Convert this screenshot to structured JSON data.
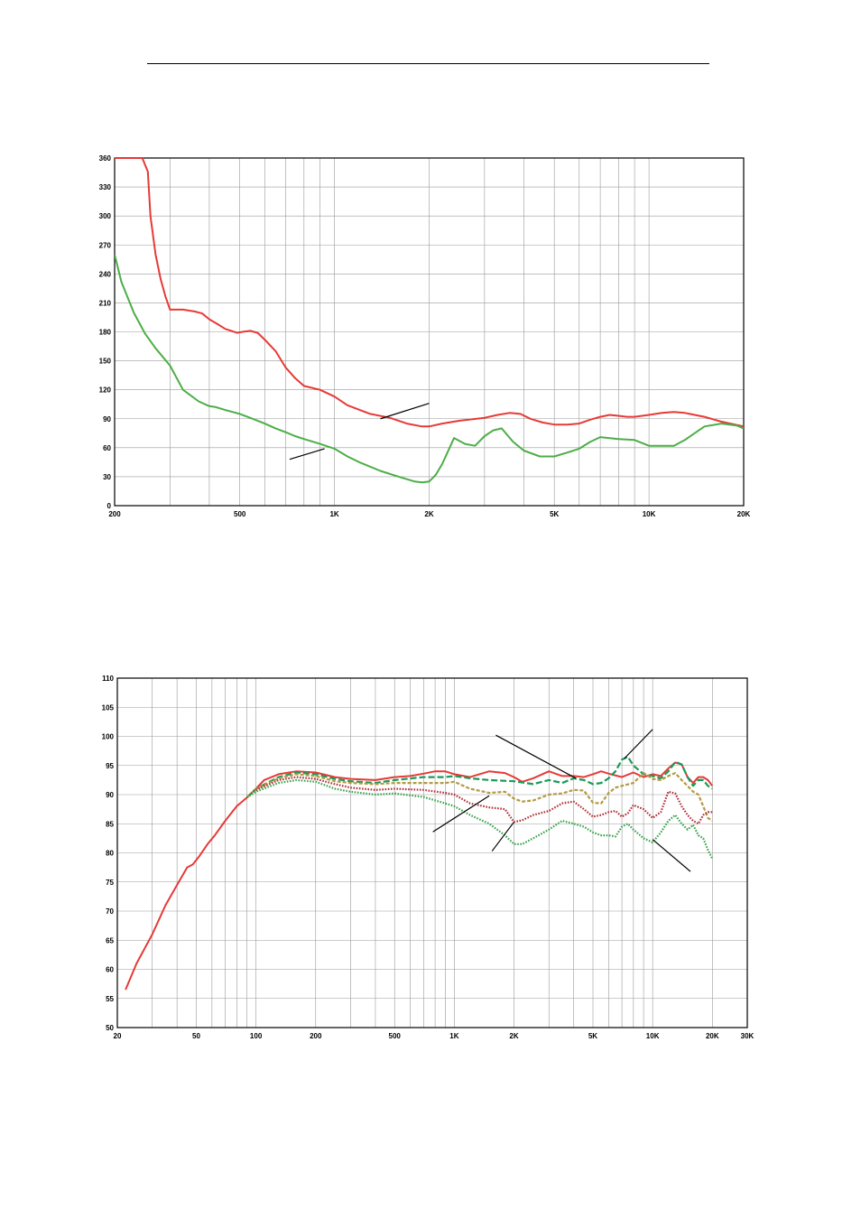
{
  "colors": {
    "red": "#e63a36",
    "green": "#4cae47",
    "dark_green": "#1a9a58",
    "olive": "#b39a45",
    "dark_red": "#b12f3a",
    "light_green": "#3aa54d",
    "grid": "#9a9a9a",
    "frame": "#000000"
  },
  "chart_data": [
    {
      "type": "line",
      "x_scale": "log",
      "xlim": [
        200,
        20000
      ],
      "ylim": [
        0,
        360
      ],
      "x_tick_values": [
        200,
        500,
        1000,
        2000,
        5000,
        10000,
        20000
      ],
      "x_tick_labels": [
        "200",
        "500",
        "1K",
        "2K",
        "5K",
        "10K",
        "20K"
      ],
      "y_tick_values": [
        0,
        30,
        60,
        90,
        120,
        150,
        180,
        210,
        240,
        270,
        300,
        330,
        360
      ],
      "y_tick_labels": [
        "0",
        "30",
        "60",
        "90",
        "120",
        "150",
        "180",
        "210",
        "240",
        "270",
        "300",
        "330",
        "360"
      ],
      "grid": true,
      "series": [
        {
          "color_key": "red",
          "style": "solid",
          "x": [
            200,
            245,
            255,
            260,
            270,
            280,
            290,
            300,
            330,
            360,
            380,
            400,
            420,
            450,
            490,
            510,
            540,
            570,
            600,
            650,
            700,
            750,
            800,
            900,
            1000,
            1100,
            1300,
            1500,
            1700,
            1900,
            2000,
            2200,
            2500,
            3000,
            3300,
            3600,
            3900,
            4200,
            4600,
            5000,
            5500,
            6000,
            6500,
            7000,
            7500,
            8000,
            8500,
            9000,
            10000,
            11000,
            12000,
            13000,
            15000,
            17000,
            20000
          ],
          "y": [
            360,
            360,
            346,
            300,
            260,
            235,
            217,
            203,
            203,
            201,
            199,
            193,
            189,
            183,
            179,
            180,
            181,
            179,
            172,
            160,
            143,
            132,
            124,
            120,
            113,
            104,
            95,
            91,
            85,
            82,
            82,
            85,
            88,
            91,
            94,
            96,
            95,
            90,
            86,
            84,
            84,
            85,
            89,
            92,
            94,
            93,
            92,
            92,
            94,
            96,
            97,
            96,
            92,
            87,
            82
          ]
        },
        {
          "color_key": "green",
          "style": "solid",
          "x": [
            200,
            210,
            230,
            250,
            270,
            300,
            330,
            370,
            400,
            420,
            450,
            500,
            550,
            600,
            650,
            700,
            750,
            800,
            900,
            1000,
            1100,
            1200,
            1400,
            1600,
            1800,
            1900,
            2000,
            2100,
            2200,
            2400,
            2600,
            2800,
            3000,
            3200,
            3400,
            3700,
            4000,
            4500,
            5000,
            5500,
            6000,
            6500,
            7000,
            8000,
            9000,
            10000,
            11000,
            12000,
            13000,
            15000,
            17000,
            19000,
            20000
          ],
          "y": [
            260,
            232,
            200,
            178,
            163,
            145,
            120,
            108,
            103,
            102,
            99,
            95,
            90,
            85,
            80,
            76,
            72,
            69,
            64,
            59,
            51,
            45,
            36,
            30,
            25,
            24,
            25,
            32,
            43,
            70,
            64,
            62,
            72,
            78,
            80,
            66,
            57,
            51,
            51,
            55,
            59,
            66,
            71,
            69,
            68,
            62,
            62,
            62,
            68,
            82,
            85,
            83,
            80
          ]
        }
      ],
      "annotation_lines": [
        {
          "x1": 1400,
          "y1": 90,
          "x2": 2000,
          "y2": 106
        },
        {
          "x1": 720,
          "y1": 48,
          "x2": 930,
          "y2": 59
        }
      ]
    },
    {
      "type": "line",
      "x_scale": "log",
      "xlim": [
        20,
        30000
      ],
      "ylim": [
        50,
        110
      ],
      "x_tick_values": [
        20,
        50,
        100,
        200,
        500,
        1000,
        2000,
        5000,
        10000,
        20000,
        30000
      ],
      "x_tick_labels": [
        "20",
        "50",
        "100",
        "200",
        "500",
        "1K",
        "2K",
        "5K",
        "10K",
        "20K",
        "30K"
      ],
      "y_tick_values": [
        50,
        55,
        60,
        65,
        70,
        75,
        80,
        85,
        90,
        95,
        100,
        105,
        110
      ],
      "y_tick_labels": [
        "50",
        "55",
        "60",
        "65",
        "70",
        "75",
        "80",
        "85",
        "90",
        "95",
        "100",
        "105",
        "110"
      ],
      "grid": true,
      "series": [
        {
          "color_key": "red",
          "style": "solid",
          "x": [
            22,
            25,
            30,
            35,
            40,
            45,
            48,
            52,
            57,
            62,
            70,
            80,
            90,
            100,
            110,
            130,
            160,
            200,
            250,
            300,
            400,
            500,
            600,
            700,
            800,
            900,
            1000,
            1200,
            1500,
            1800,
            2000,
            2200,
            2500,
            3000,
            3500,
            4000,
            4500,
            5000,
            5500,
            6000,
            7000,
            8000,
            9000,
            10000,
            11000,
            12000,
            13000,
            14000,
            15000,
            16000,
            17000,
            18000,
            19000,
            20000
          ],
          "y": [
            56.5,
            61,
            66,
            71,
            74.5,
            77.5,
            78,
            79.5,
            81.5,
            83,
            85.5,
            88,
            89.5,
            91,
            92.5,
            93.5,
            94,
            93.8,
            93,
            92.7,
            92.5,
            93,
            93.2,
            93.6,
            94,
            94,
            93.5,
            93,
            94,
            93.7,
            93,
            92.2,
            92.8,
            94,
            93.2,
            93.2,
            93,
            93.5,
            94,
            93.6,
            93,
            93.8,
            93,
            93.5,
            93.2,
            94.5,
            95.5,
            95.2,
            93,
            92,
            93,
            93,
            92.5,
            91.5
          ]
        },
        {
          "color_key": "dark_green",
          "style": "dash",
          "x": [
            90,
            100,
            130,
            160,
            200,
            250,
            300,
            400,
            500,
            700,
            900,
            1000,
            1200,
            1500,
            2000,
            2500,
            3000,
            3500,
            4000,
            4500,
            5000,
            5500,
            6000,
            6500,
            7000,
            7500,
            8000,
            9000,
            10000,
            11000,
            12000,
            13000,
            14000,
            15000,
            16000,
            17000,
            18000,
            19000,
            20000
          ],
          "y": [
            89.5,
            91,
            93,
            93.8,
            93.5,
            92.7,
            92.3,
            92,
            92.5,
            93,
            93,
            93.2,
            92.8,
            92.5,
            92.3,
            91.8,
            92.5,
            92,
            92.8,
            92.5,
            91.8,
            92,
            92.8,
            94,
            96,
            96.5,
            95,
            93.5,
            93.2,
            92.8,
            94,
            95.6,
            95.2,
            93,
            91.5,
            92.5,
            92.5,
            91.5,
            91
          ]
        },
        {
          "color_key": "olive",
          "style": "dash-short",
          "x": [
            90,
            100,
            130,
            160,
            200,
            250,
            300,
            400,
            500,
            700,
            900,
            1000,
            1200,
            1500,
            1800,
            2000,
            2200,
            2500,
            3000,
            3500,
            4000,
            4500,
            5000,
            5500,
            6000,
            6500,
            7000,
            8000,
            9000,
            10000,
            11000,
            12000,
            13000,
            14000,
            15000,
            16000,
            17000,
            18000,
            19000,
            20000
          ],
          "y": [
            89.5,
            91,
            92.8,
            93.5,
            93.2,
            92.3,
            92,
            91.8,
            92,
            92,
            92,
            92.2,
            91,
            90.3,
            90.5,
            89.3,
            88.8,
            89,
            90,
            90.2,
            90.8,
            90.7,
            88.6,
            88.5,
            90.3,
            91.2,
            91.5,
            92,
            93.7,
            92.7,
            92.5,
            93.2,
            93.7,
            92.5,
            91.5,
            90.5,
            90,
            88,
            86,
            85.5
          ]
        },
        {
          "color_key": "dark_red",
          "style": "dot",
          "x": [
            90,
            100,
            130,
            160,
            200,
            250,
            300,
            400,
            500,
            700,
            900,
            1000,
            1200,
            1500,
            1800,
            2000,
            2200,
            2500,
            3000,
            3500,
            4000,
            4500,
            5000,
            5500,
            6000,
            6500,
            7000,
            7500,
            8000,
            9000,
            10000,
            11000,
            12000,
            13000,
            14000,
            15000,
            16000,
            17000,
            18000,
            19000,
            20000
          ],
          "y": [
            89.5,
            90.8,
            92.5,
            93,
            92.7,
            91.8,
            91.2,
            90.8,
            91,
            90.8,
            90.3,
            90,
            88.5,
            87.8,
            87.5,
            85.3,
            85.6,
            86.5,
            87.2,
            88.5,
            88.8,
            87.5,
            86.2,
            86.5,
            87,
            87.2,
            86.2,
            86.8,
            88.2,
            87.5,
            86,
            87,
            90.5,
            90.2,
            88,
            86.5,
            85.5,
            85,
            86.5,
            87,
            87
          ]
        },
        {
          "color_key": "light_green",
          "style": "dot",
          "x": [
            90,
            100,
            130,
            160,
            200,
            250,
            300,
            400,
            500,
            700,
            900,
            1000,
            1200,
            1500,
            1800,
            2000,
            2200,
            2500,
            3000,
            3500,
            4000,
            4500,
            5000,
            5500,
            6000,
            6500,
            7000,
            7500,
            8000,
            9000,
            10000,
            11000,
            12000,
            13000,
            14000,
            15000,
            16000,
            17000,
            18000,
            19000,
            20000
          ],
          "y": [
            89.5,
            90.5,
            92,
            92.5,
            92.2,
            91,
            90.5,
            90,
            90.2,
            89.6,
            88.5,
            88,
            86.5,
            85,
            83,
            81.5,
            81.5,
            82.5,
            84,
            85.5,
            85,
            84.5,
            83.5,
            83,
            83,
            82.8,
            84.5,
            85,
            84,
            82.5,
            81.8,
            83.5,
            85.5,
            86.5,
            85,
            84,
            84.8,
            83,
            82.5,
            80.5,
            79
          ]
        }
      ],
      "annotation_lines": [
        {
          "x1": 1620,
          "y1": 100.2,
          "x2": 4100,
          "y2": 92.8
        },
        {
          "x1": 10000,
          "y1": 101.2,
          "x2": 7200,
          "y2": 96.2
        },
        {
          "x1": 780,
          "y1": 83.6,
          "x2": 1500,
          "y2": 89.8
        },
        {
          "x1": 1550,
          "y1": 80.3,
          "x2": 2000,
          "y2": 85.3
        },
        {
          "x1": 10000,
          "y1": 82.3,
          "x2": 15500,
          "y2": 76.8
        }
      ]
    }
  ]
}
